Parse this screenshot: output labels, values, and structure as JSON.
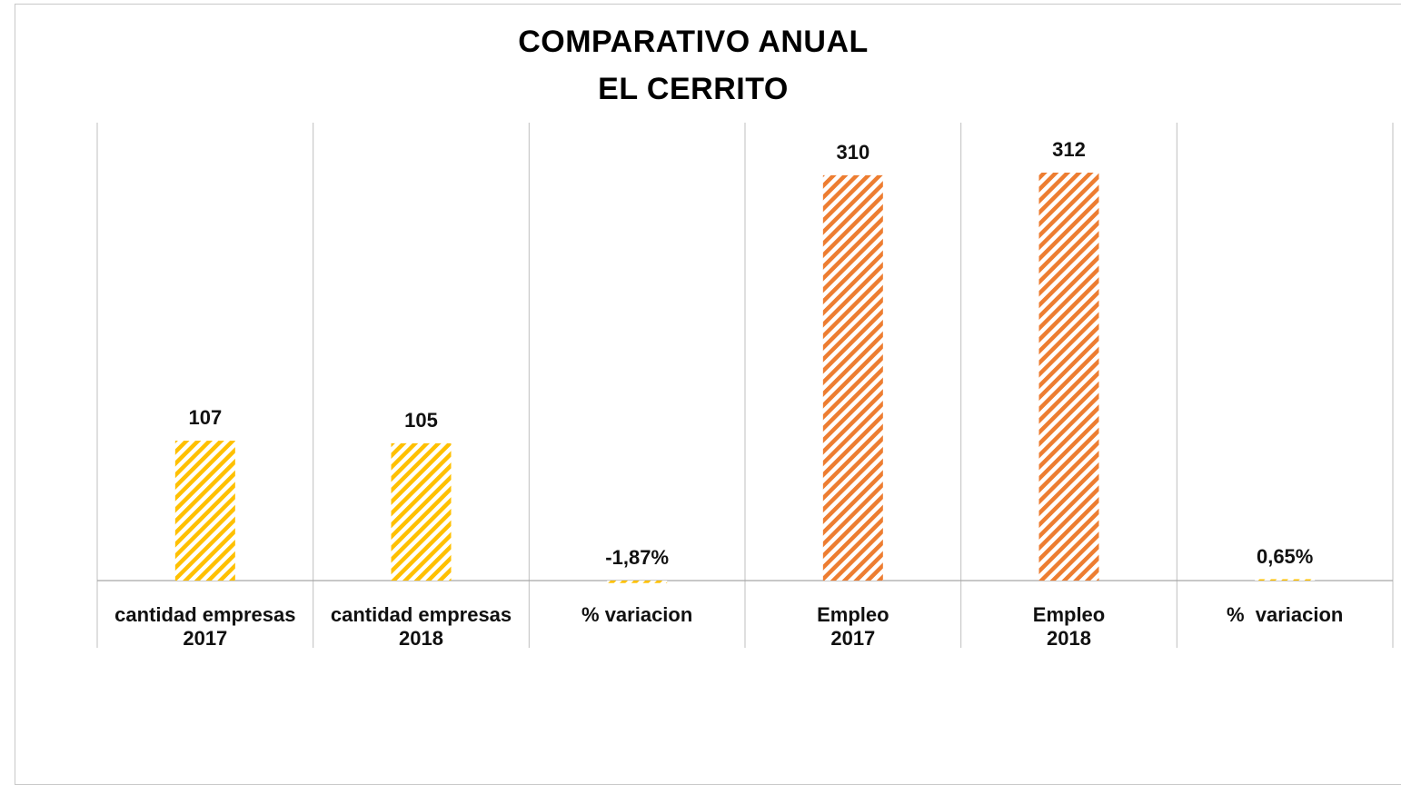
{
  "chart_data": {
    "type": "bar",
    "title": [
      "COMPARATIVO ANUAL",
      "EL CERRITO"
    ],
    "xlabel": "",
    "ylabel": "",
    "ylim": [
      0,
      330
    ],
    "grid": "vertical category separators",
    "legend": "none",
    "categories": [
      [
        "cantidad empresas",
        "2017"
      ],
      [
        "cantidad empresas",
        "2018"
      ],
      [
        "% variacion"
      ],
      [
        "Empleo",
        "2017"
      ],
      [
        "Empleo",
        "2018"
      ],
      [
        "%  variacion"
      ]
    ],
    "values": [
      107,
      105,
      -1.87,
      310,
      312,
      0.65
    ],
    "data_labels": [
      "107",
      "105",
      "-1,87%",
      "310",
      "312",
      "0,65%"
    ],
    "bar_colors": [
      "#FFC000",
      "#FFC000",
      "#FFC000",
      "#ED7D31",
      "#ED7D31",
      "#FFC000"
    ],
    "pattern": "diagonal-stripes"
  }
}
